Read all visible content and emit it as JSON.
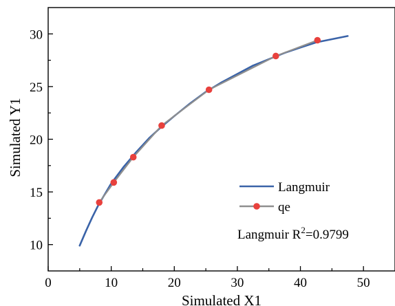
{
  "chart_data": {
    "type": "line",
    "title": "",
    "xlabel": "Simulated X1",
    "ylabel": "Simulated Y1",
    "xlim": [
      0,
      55
    ],
    "ylim": [
      7.5,
      32.5
    ],
    "x_ticks": [
      0,
      10,
      20,
      30,
      40,
      50
    ],
    "y_ticks": [
      10,
      15,
      20,
      25,
      30
    ],
    "grid": false,
    "legend_position": "bottom-right",
    "series": [
      {
        "name": "Langmuir",
        "style": "line",
        "color": "#3a63a8",
        "x": [
          5.0,
          6.0,
          7.0,
          8.0,
          9.0,
          10.0,
          12.0,
          14.0,
          16.0,
          18.0,
          20.0,
          22.5,
          25.0,
          27.5,
          30.0,
          32.5,
          35.0,
          37.5,
          40.0,
          42.5,
          45.0,
          47.5
        ],
        "y": [
          9.9,
          11.3,
          12.6,
          13.8,
          14.8,
          15.8,
          17.4,
          18.8,
          20.1,
          21.2,
          22.2,
          23.4,
          24.5,
          25.4,
          26.2,
          27.0,
          27.6,
          28.2,
          28.7,
          29.2,
          29.5,
          29.8
        ]
      },
      {
        "name": "qe",
        "style": "line+markers",
        "color": "#8f8f8f",
        "marker_color": "#e8413d",
        "x": [
          8.1,
          10.4,
          13.5,
          18.0,
          25.5,
          36.1,
          42.7
        ],
        "y": [
          14.0,
          15.9,
          18.3,
          21.3,
          24.7,
          27.9,
          29.4
        ]
      }
    ],
    "annotation": {
      "prefix": "Langmuir R",
      "superscript": "2",
      "suffix": "=0.9799"
    }
  }
}
